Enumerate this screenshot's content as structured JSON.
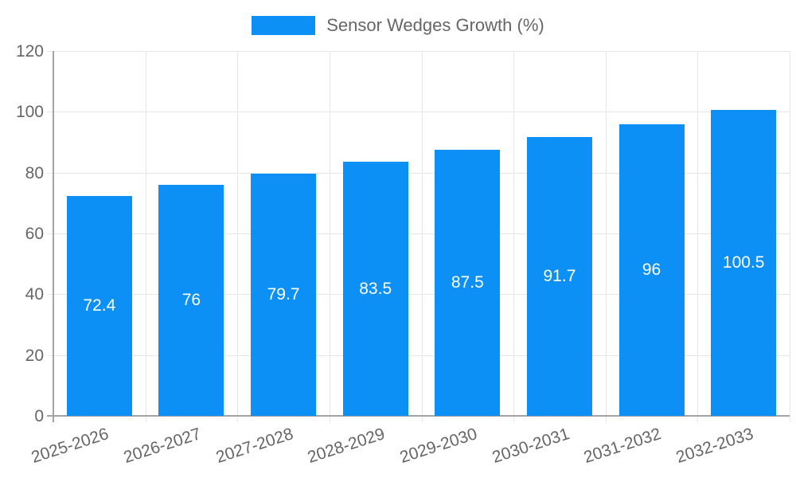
{
  "page": {
    "background": "#ffffff"
  },
  "chart_data": {
    "type": "bar",
    "title": "Sensor Wedges Growth (%)",
    "categories": [
      "2025-2026",
      "2026-2027",
      "2027-2028",
      "2028-2029",
      "2029-2030",
      "2030-2031",
      "2031-2032",
      "2032-2033"
    ],
    "values": [
      72.4,
      76,
      79.7,
      83.5,
      87.5,
      91.7,
      96,
      100.5
    ],
    "value_labels": [
      "72.4",
      "76",
      "79.7",
      "83.5",
      "87.5",
      "91.7",
      "96",
      "100.5"
    ],
    "xlabel": "",
    "ylabel": "",
    "ylim": [
      0,
      120
    ],
    "yticks": [
      0,
      20,
      40,
      60,
      80,
      100,
      120
    ],
    "grid": true,
    "legend_position": "top-center",
    "colors": {
      "bar": "#0d90f5",
      "grid": "#e6e6e6",
      "axis": "#a3a3a3",
      "tick_text": "#666666",
      "value_text": "#ffffff"
    }
  }
}
